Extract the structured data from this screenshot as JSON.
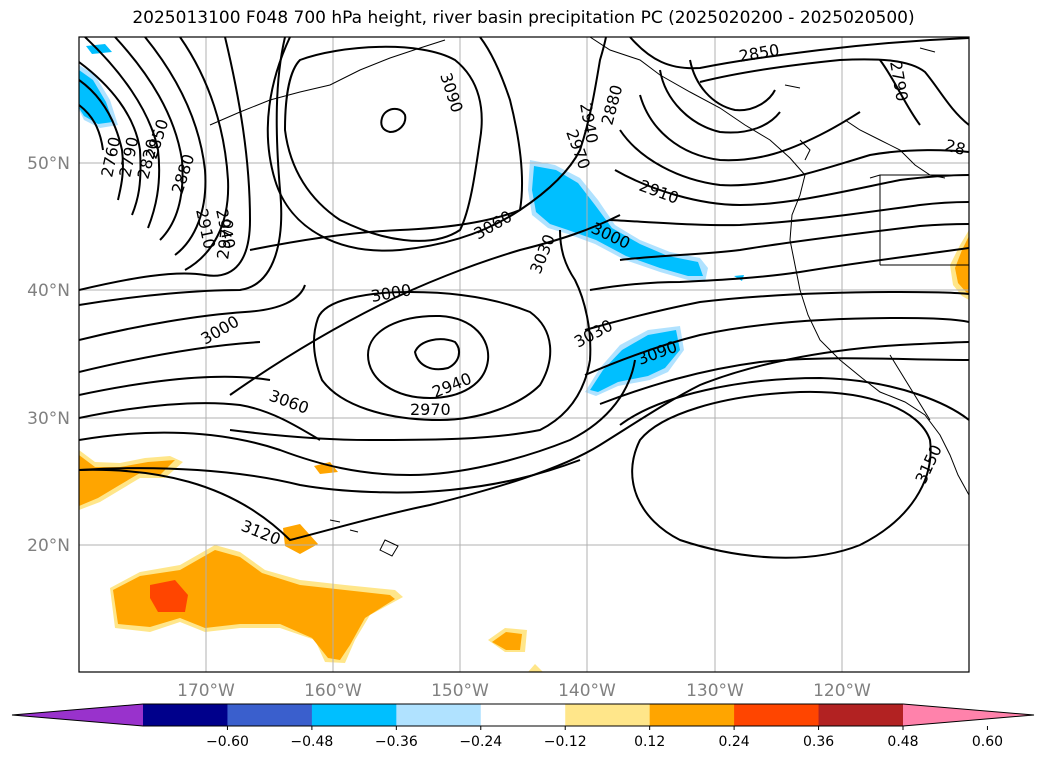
{
  "title": "2025013100 F048 700 hPa height, river basin precipitation PC (2025020200 - 2025020500)",
  "lat_labels": [
    "50°N",
    "40°N",
    "30°N",
    "20°N"
  ],
  "lon_labels": [
    "170°W",
    "160°W",
    "150°W",
    "140°W",
    "130°W",
    "120°W"
  ],
  "contour_labels": [
    "2760",
    "2790",
    "2820",
    "2850",
    "2880",
    "2910",
    "2940",
    "2970",
    "3000",
    "3030",
    "3060",
    "3090",
    "3120",
    "3150",
    "2940",
    "2970",
    "3000",
    "3030",
    "3060",
    "3090",
    "2850",
    "2790",
    "2880",
    "2940",
    "2970",
    "2910",
    "3000",
    "3030",
    "3090",
    "28"
  ],
  "colorbar": {
    "tick_labels": [
      "−0.60",
      "−0.48",
      "−0.36",
      "−0.24",
      "−0.12",
      "0.12",
      "0.24",
      "0.36",
      "0.48",
      "0.60"
    ],
    "colors": [
      "#9932cc",
      "#00008b",
      "#3a5fcd",
      "#00bfff",
      "#b0e2ff",
      "#ffffff",
      "#ffe68a",
      "#ffa500",
      "#ff4500",
      "#b22222",
      "#ff82ab"
    ]
  },
  "colors": {
    "positive_orange": "#ffa500",
    "positive_light": "#ffe68a",
    "positive_red": "#ff4500",
    "negative_blue": "#00bfff",
    "negative_light": "#b0e2ff"
  }
}
